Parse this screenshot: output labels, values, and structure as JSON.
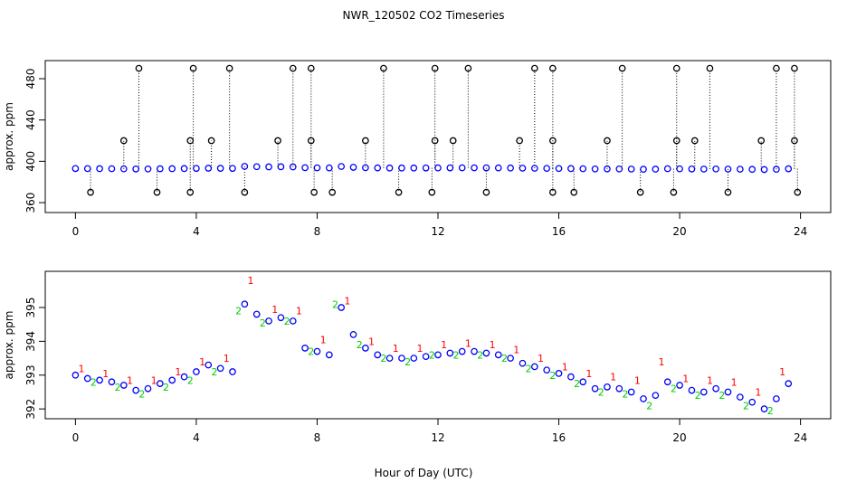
{
  "chart_data": [
    {
      "type": "scatter",
      "title": "NWR_120502  CO2 Timeseries",
      "ylabel": "approx. ppm",
      "xlim": [
        -1,
        25
      ],
      "xticks": [
        0,
        4,
        8,
        12,
        16,
        20,
        24
      ],
      "ylim": [
        350.4,
        497.5
      ],
      "yticks": [
        360,
        400,
        440,
        480
      ],
      "series": [
        {
          "color": "#0000ff",
          "marker": "circle",
          "x": [
            0,
            0.4,
            0.8,
            1.2,
            1.6,
            2.0,
            2.4,
            2.8,
            3.2,
            3.6,
            4.0,
            4.4,
            4.8,
            5.2,
            5.6,
            6.0,
            6.4,
            6.8,
            7.2,
            7.6,
            8.0,
            8.4,
            8.8,
            9.2,
            9.6,
            10.0,
            10.4,
            10.8,
            11.2,
            11.6,
            12.0,
            12.4,
            12.8,
            13.2,
            13.6,
            14.0,
            14.4,
            14.8,
            15.2,
            15.6,
            16.0,
            16.4,
            16.8,
            17.2,
            17.6,
            18.0,
            18.4,
            18.8,
            19.2,
            19.6,
            20.0,
            20.4,
            20.8,
            21.2,
            21.6,
            22.0,
            22.4,
            22.8,
            23.2,
            23.6
          ],
          "values": [
            393.0,
            392.9,
            392.85,
            392.8,
            392.7,
            392.55,
            392.6,
            392.75,
            392.85,
            392.95,
            393.1,
            393.3,
            393.2,
            393.1,
            395.1,
            394.8,
            394.6,
            394.7,
            394.6,
            393.8,
            393.7,
            393.6,
            395.0,
            394.2,
            393.8,
            393.6,
            393.5,
            393.5,
            393.5,
            393.55,
            393.6,
            393.65,
            393.7,
            393.7,
            393.65,
            393.6,
            393.5,
            393.35,
            393.25,
            393.15,
            393.05,
            392.95,
            392.8,
            392.6,
            392.65,
            392.6,
            392.5,
            392.3,
            392.4,
            392.8,
            392.7,
            392.55,
            392.5,
            392.6,
            392.5,
            392.35,
            392.2,
            392.0,
            392.3,
            392.75
          ]
        },
        {
          "color": "#000000",
          "marker": "stem",
          "x": [
            0.5,
            2.7,
            3.8,
            5.6,
            7.9,
            8.5,
            10.7,
            11.8,
            13.6,
            15.8,
            16.5,
            18.7,
            19.8,
            21.6,
            23.9,
            1.6,
            3.8,
            4.5,
            6.7,
            7.8,
            9.6,
            11.9,
            12.5,
            14.7,
            15.8,
            17.6,
            19.9,
            20.5,
            22.7,
            23.8,
            2.1,
            3.9,
            5.1,
            7.2,
            7.8,
            10.2,
            11.9,
            13.0,
            15.2,
            15.8,
            18.1,
            19.9,
            21.0,
            23.2,
            23.8
          ],
          "values": [
            370,
            370,
            370,
            370,
            370,
            370,
            370,
            370,
            370,
            370,
            370,
            370,
            370,
            370,
            370,
            420,
            420,
            420,
            420,
            420,
            420,
            420,
            420,
            420,
            420,
            420,
            420,
            420,
            420,
            420,
            490,
            490,
            490,
            490,
            490,
            490,
            490,
            490,
            490,
            490,
            490,
            490,
            490,
            490,
            490
          ]
        }
      ]
    },
    {
      "type": "scatter",
      "ylabel": "approx. ppm",
      "xlabel": "Hour of Day (UTC)",
      "xlim": [
        -1,
        25
      ],
      "xticks": [
        0,
        4,
        8,
        12,
        16,
        20,
        24
      ],
      "ylim": [
        391.71,
        396.07
      ],
      "yticks": [
        392,
        393,
        394,
        395
      ],
      "series": [
        {
          "color": "#ff0000",
          "marker": "text",
          "symbol": "1",
          "x": [
            0.2,
            1.0,
            1.8,
            2.6,
            3.4,
            4.2,
            5.0,
            5.8,
            6.6,
            7.4,
            8.2,
            9.0,
            9.8,
            10.6,
            11.4,
            12.2,
            13.0,
            13.8,
            14.6,
            15.4,
            16.2,
            17.0,
            17.8,
            18.6,
            19.4,
            20.2,
            21.0,
            21.8,
            22.6,
            23.4
          ],
          "values": [
            393.2,
            393.05,
            392.85,
            392.85,
            393.1,
            393.4,
            393.5,
            395.8,
            394.95,
            394.9,
            394.05,
            395.2,
            394.0,
            393.8,
            393.8,
            393.9,
            393.95,
            393.9,
            393.75,
            393.5,
            393.25,
            393.05,
            392.95,
            392.85,
            393.4,
            392.9,
            392.85,
            392.8,
            392.5,
            393.1
          ]
        },
        {
          "color": "#00cc00",
          "marker": "text",
          "symbol": "2",
          "x": [
            0.6,
            1.4,
            2.2,
            3.0,
            3.8,
            4.6,
            5.4,
            6.2,
            7.0,
            7.8,
            8.6,
            9.4,
            10.2,
            11.0,
            11.8,
            12.6,
            13.4,
            14.2,
            15.0,
            15.8,
            16.6,
            17.4,
            18.2,
            19.0,
            19.8,
            20.6,
            21.4,
            22.2,
            23.0
          ],
          "values": [
            392.8,
            392.65,
            392.45,
            392.65,
            392.85,
            393.1,
            394.9,
            394.55,
            394.6,
            393.7,
            395.1,
            393.9,
            393.5,
            393.4,
            393.6,
            393.6,
            393.6,
            393.5,
            393.2,
            393.0,
            392.75,
            392.5,
            392.45,
            392.1,
            392.6,
            392.4,
            392.4,
            392.1,
            391.95
          ]
        },
        {
          "color": "#0000ff",
          "marker": "circle",
          "x": [
            0,
            0.4,
            0.8,
            1.2,
            1.6,
            2.0,
            2.4,
            2.8,
            3.2,
            3.6,
            4.0,
            4.4,
            4.8,
            5.2,
            5.6,
            6.0,
            6.4,
            6.8,
            7.2,
            7.6,
            8.0,
            8.4,
            8.8,
            9.2,
            9.6,
            10.0,
            10.4,
            10.8,
            11.2,
            11.6,
            12.0,
            12.4,
            12.8,
            13.2,
            13.6,
            14.0,
            14.4,
            14.8,
            15.2,
            15.6,
            16.0,
            16.4,
            16.8,
            17.2,
            17.6,
            18.0,
            18.4,
            18.8,
            19.2,
            19.6,
            20.0,
            20.4,
            20.8,
            21.2,
            21.6,
            22.0,
            22.4,
            22.8,
            23.2,
            23.6
          ],
          "values": [
            393.0,
            392.9,
            392.85,
            392.8,
            392.7,
            392.55,
            392.6,
            392.75,
            392.85,
            392.95,
            393.1,
            393.3,
            393.2,
            393.1,
            395.1,
            394.8,
            394.6,
            394.7,
            394.6,
            393.8,
            393.7,
            393.6,
            395.0,
            394.2,
            393.8,
            393.6,
            393.5,
            393.5,
            393.5,
            393.55,
            393.6,
            393.65,
            393.7,
            393.7,
            393.65,
            393.6,
            393.5,
            393.35,
            393.25,
            393.15,
            393.05,
            392.95,
            392.8,
            392.6,
            392.65,
            392.6,
            392.5,
            392.3,
            392.4,
            392.8,
            392.7,
            392.55,
            392.5,
            392.6,
            392.5,
            392.35,
            392.2,
            392.0,
            392.3,
            392.75
          ]
        }
      ]
    }
  ]
}
